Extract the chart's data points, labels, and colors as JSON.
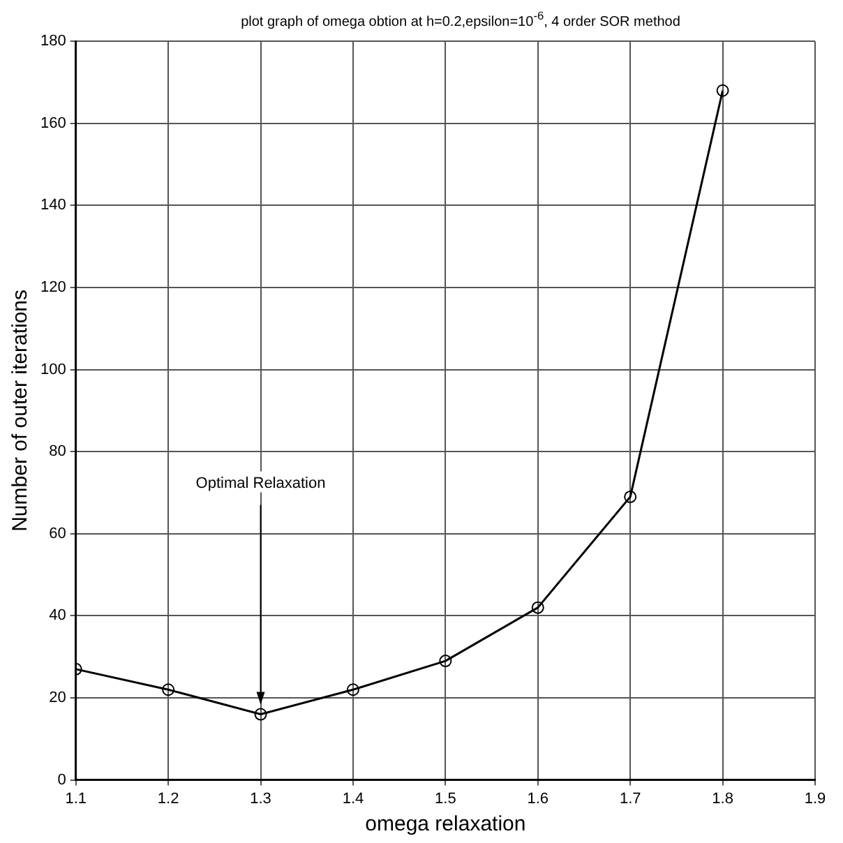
{
  "chart_data": {
    "type": "line",
    "title": "plot graph of omega obtion at h=0.2,epsilon=10$^{-6}$, 4 order SOR method",
    "xlabel": "omega relaxation",
    "ylabel": "Number of outer iterations",
    "x": [
      1.1,
      1.2,
      1.3,
      1.4,
      1.5,
      1.6,
      1.7,
      1.8
    ],
    "series": [
      {
        "color": "#000000",
        "values": [
          27,
          22,
          16,
          22,
          29,
          42,
          69,
          168
        ]
      }
    ],
    "xlim": [
      1.1,
      1.9
    ],
    "xticks": [
      1.1,
      1.2,
      1.3,
      1.4,
      1.5,
      1.6,
      1.7,
      1.8,
      1.9
    ],
    "ylim": [
      0,
      180
    ],
    "yticks": [
      0,
      20,
      40,
      60,
      80,
      100,
      120,
      140,
      160,
      180
    ],
    "grid": true,
    "marker": "circle",
    "line_style": "solid",
    "legend": false,
    "annotations": [
      {
        "text": "Optimal Relaxation",
        "x": 1.3,
        "y": 16
      }
    ]
  }
}
